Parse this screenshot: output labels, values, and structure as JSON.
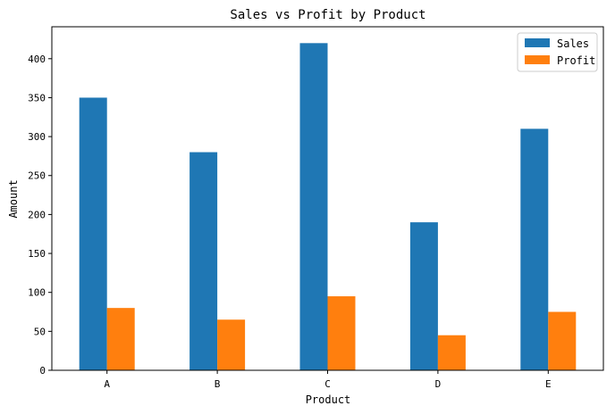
{
  "chart_data": {
    "type": "bar",
    "title": "Sales vs Profit by Product",
    "xlabel": "Product",
    "ylabel": "Amount",
    "categories": [
      "A",
      "B",
      "C",
      "D",
      "E"
    ],
    "series": [
      {
        "name": "Sales",
        "values": [
          350,
          280,
          420,
          190,
          310
        ],
        "color": "#1f77b4"
      },
      {
        "name": "Profit",
        "values": [
          80,
          65,
          95,
          45,
          75
        ],
        "color": "#ff7f0e"
      }
    ],
    "ylim": [
      0,
      441
    ],
    "yticks": [
      0,
      50,
      100,
      150,
      200,
      250,
      300,
      350,
      400
    ],
    "grid": false,
    "legend_position": "top-right"
  }
}
